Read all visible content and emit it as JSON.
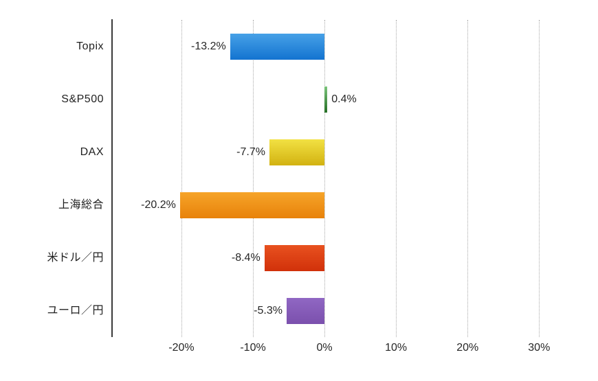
{
  "chart_data": {
    "type": "bar",
    "orientation": "horizontal",
    "title": "",
    "xlabel": "",
    "ylabel": "",
    "legend_position": "none",
    "grid": "vertical-dotted",
    "xlim": [
      -29.7,
      34.2
    ],
    "categories": [
      "Topix",
      "S&P500",
      "DAX",
      "上海総合",
      "米ドル／円",
      "ユーロ／円"
    ],
    "slugs": [
      "topix",
      "sp500",
      "dax",
      "shanghai-composite",
      "usd-jpy",
      "eur-jpy"
    ],
    "values": [
      -13.2,
      0.4,
      -7.7,
      -20.2,
      -8.4,
      -5.3
    ],
    "data_labels": [
      "-13.2%",
      "0.4%",
      "-7.7%",
      "-20.2%",
      "-8.4%",
      "-5.3%"
    ],
    "bar_colors": [
      {
        "top": "#47a1e7",
        "bottom": "#1373d0"
      },
      {
        "top": "#7cc47c",
        "bottom": "#256e25"
      },
      {
        "top": "#f2e143",
        "bottom": "#d2b211"
      },
      {
        "top": "#f6a429",
        "bottom": "#e8820a"
      },
      {
        "top": "#e8511f",
        "bottom": "#d1310a"
      },
      {
        "top": "#9067c3",
        "bottom": "#7b50ad"
      }
    ],
    "x_ticks": [
      {
        "value": -20,
        "label": "-20%"
      },
      {
        "value": -10,
        "label": "-10%"
      },
      {
        "value": 0,
        "label": "0%"
      },
      {
        "value": 10,
        "label": "10%"
      },
      {
        "value": 20,
        "label": "20%"
      },
      {
        "value": 30,
        "label": "30%"
      }
    ],
    "colors": {
      "background": "#ffffff",
      "axis_line": "#3a3a3a",
      "gridline": "#a8a8a8",
      "text": "#1f1f1f"
    }
  }
}
